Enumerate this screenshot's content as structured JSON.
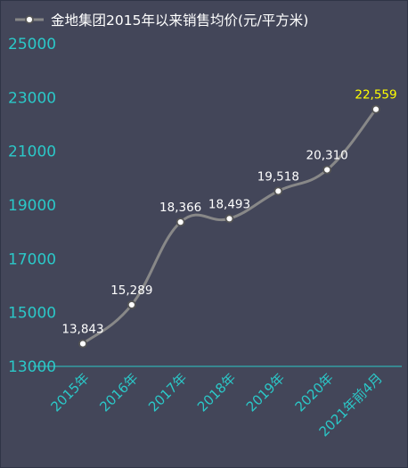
{
  "chart_data": {
    "type": "line",
    "title": "",
    "xlabel": "",
    "ylabel": "",
    "categories": [
      "2015年",
      "2016年",
      "2017年",
      "2018年",
      "2019年",
      "2020年",
      "2021年前4月"
    ],
    "series": [
      {
        "name": "金地集团2015年以来销售均价(元/平方米)",
        "values": [
          13843,
          15289,
          18366,
          18493,
          19518,
          20310,
          22559
        ],
        "labels": [
          "13,843",
          "15,289",
          "18,366",
          "18,493",
          "19,518",
          "20,310",
          "22,559"
        ]
      }
    ],
    "ylim": [
      13000,
      25000
    ],
    "yticks": [
      "13000",
      "15000",
      "17000",
      "19000",
      "21000",
      "23000",
      "25000"
    ],
    "grid": false,
    "legend_position": "top",
    "smooth": true
  },
  "colors": {
    "background": "#434659",
    "line": "#888888",
    "marker_fill": "#ffffff",
    "marker_stroke": "#555555",
    "axis_tick_text": "#2bc8c8",
    "axis_line": "#2bc8c8",
    "data_label": "#ffffff",
    "highlight_label": "#ffff00",
    "legend_text": "#ffffff"
  }
}
